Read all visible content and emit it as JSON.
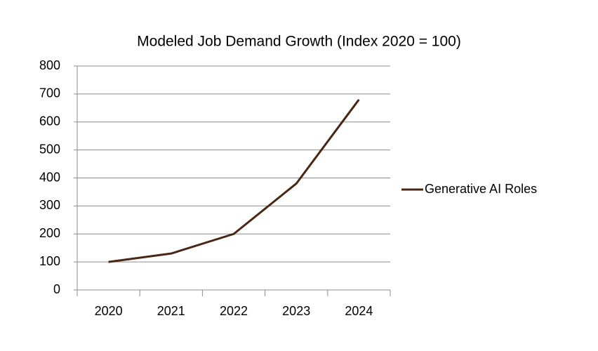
{
  "chart_data": {
    "type": "line",
    "title": "Modeled Job Demand Growth (Index 2020 = 100)",
    "categories": [
      "2020",
      "2021",
      "2022",
      "2023",
      "2024"
    ],
    "series": [
      {
        "name": "Generative AI Roles",
        "color": "#4a2614",
        "values": [
          100,
          130,
          200,
          380,
          680
        ]
      }
    ],
    "ylim": [
      0,
      800
    ],
    "yticks": [
      0,
      100,
      200,
      300,
      400,
      500,
      600,
      700,
      800
    ],
    "grid": true,
    "legend": "right"
  }
}
